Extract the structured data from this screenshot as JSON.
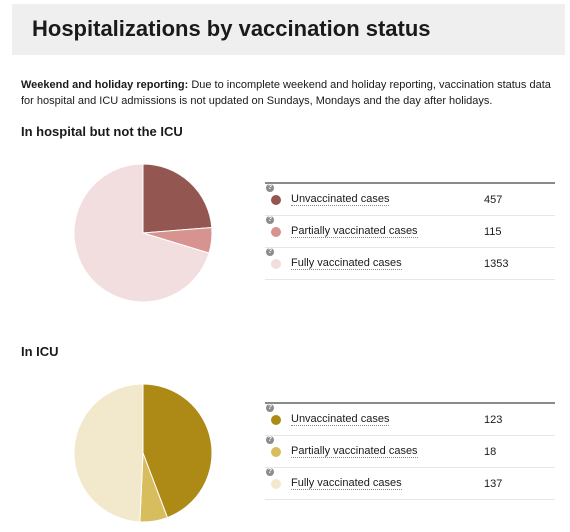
{
  "header": {
    "title": "Hospitalizations by vaccination status"
  },
  "notice": {
    "lead": "Weekend and holiday reporting:",
    "text": " Due to incomplete weekend and holiday reporting, vaccination status data for hospital and ICU admissions is not updated on Sundays, Mondays and the day after holidays."
  },
  "help_glyph": "?",
  "chart_data": [
    {
      "type": "pie",
      "title": "In hospital but not the ICU",
      "categories": [
        "Unvaccinated cases",
        "Partially vaccinated cases",
        "Fully vaccinated cases"
      ],
      "values": [
        457,
        115,
        1353
      ],
      "colors": [
        "#935650",
        "#d69390",
        "#f2dede"
      ]
    },
    {
      "type": "pie",
      "title": "In ICU",
      "categories": [
        "Unvaccinated cases",
        "Partially vaccinated cases",
        "Fully vaccinated cases"
      ],
      "values": [
        123,
        18,
        137
      ],
      "colors": [
        "#ad8915",
        "#d7bd5e",
        "#f2e8cc"
      ]
    }
  ]
}
